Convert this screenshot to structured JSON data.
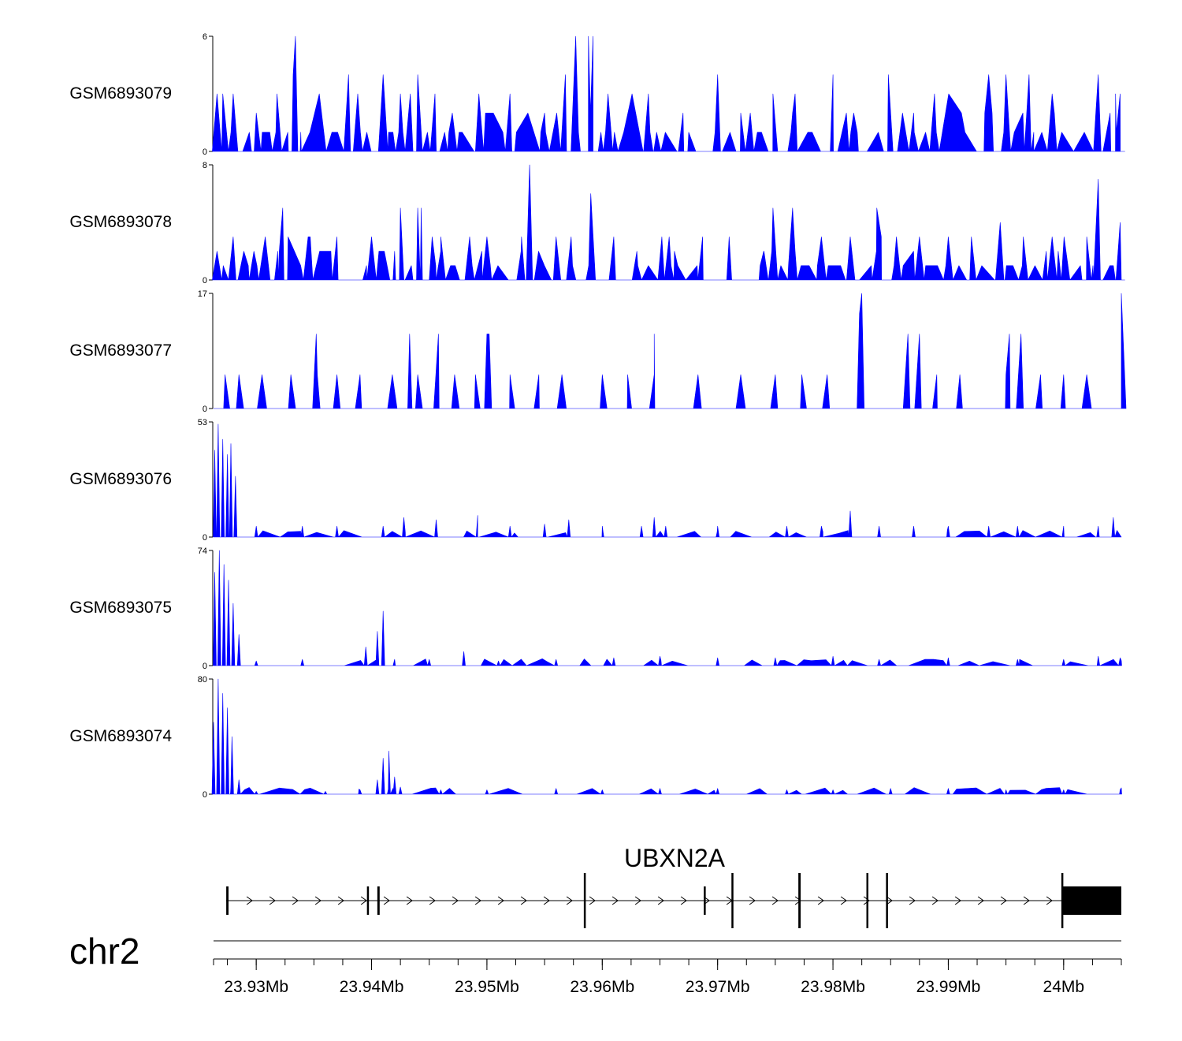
{
  "chart_data": {
    "type": "area",
    "chromosome": "chr2",
    "x_unit": "Mb",
    "xlim": [
      23.9263,
      24.005
    ],
    "x_ticks": [
      {
        "value": 23.93,
        "label": "23.93Mb"
      },
      {
        "value": 23.94,
        "label": "23.94Mb"
      },
      {
        "value": 23.95,
        "label": "23.95Mb"
      },
      {
        "value": 23.96,
        "label": "23.96Mb"
      },
      {
        "value": 23.97,
        "label": "23.97Mb"
      },
      {
        "value": 23.98,
        "label": "23.98Mb"
      },
      {
        "value": 23.99,
        "label": "23.99Mb"
      },
      {
        "value": 24.0,
        "label": "24Mb"
      }
    ],
    "tracks": [
      {
        "name": "GSM6893079",
        "ymax": 6,
        "ymin": 0,
        "color": "#0000ff",
        "peaks": [
          [
            23.9266,
            3
          ],
          [
            23.928,
            3
          ],
          [
            23.93,
            2
          ],
          [
            23.9318,
            3
          ],
          [
            23.9335,
            3
          ],
          [
            23.9334,
            6
          ],
          [
            23.9332,
            4
          ],
          [
            23.938,
            4
          ],
          [
            23.9388,
            3
          ],
          [
            23.941,
            4
          ],
          [
            23.9425,
            3
          ],
          [
            23.944,
            4
          ],
          [
            23.9455,
            3
          ],
          [
            23.947,
            2
          ],
          [
            23.9493,
            3
          ],
          [
            23.952,
            3
          ],
          [
            23.955,
            2
          ],
          [
            23.9568,
            4
          ],
          [
            23.9577,
            6
          ],
          [
            23.9588,
            6
          ],
          [
            23.9592,
            6
          ],
          [
            23.9605,
            3
          ],
          [
            23.964,
            3
          ],
          [
            23.967,
            2
          ],
          [
            23.97,
            4
          ],
          [
            23.972,
            2
          ],
          [
            23.9748,
            3
          ],
          [
            23.9765,
            2
          ],
          [
            23.98,
            4
          ],
          [
            23.9818,
            2
          ],
          [
            23.9848,
            4
          ],
          [
            23.987,
            2
          ],
          [
            23.9888,
            3
          ],
          [
            23.9935,
            4
          ],
          [
            23.995,
            4
          ],
          [
            23.997,
            4
          ],
          [
            23.999,
            3
          ],
          [
            24.003,
            4
          ],
          [
            24.0045,
            3
          ],
          [
            24.0049,
            3
          ]
        ]
      },
      {
        "name": "GSM6893078",
        "ymax": 8,
        "ymin": 0,
        "color": "#0000ff",
        "peaks": [
          [
            23.9266,
            2
          ],
          [
            23.928,
            3
          ],
          [
            23.9298,
            2
          ],
          [
            23.932,
            2
          ],
          [
            23.9323,
            5
          ],
          [
            23.9345,
            3
          ],
          [
            23.937,
            3
          ],
          [
            23.94,
            3
          ],
          [
            23.942,
            2
          ],
          [
            23.9425,
            5
          ],
          [
            23.944,
            5
          ],
          [
            23.9443,
            5
          ],
          [
            23.946,
            3
          ],
          [
            23.9485,
            3
          ],
          [
            23.95,
            3
          ],
          [
            23.953,
            3
          ],
          [
            23.9537,
            8
          ],
          [
            23.956,
            3
          ],
          [
            23.9573,
            3
          ],
          [
            23.959,
            6
          ],
          [
            23.961,
            3
          ],
          [
            23.963,
            2
          ],
          [
            23.9658,
            3
          ],
          [
            23.9687,
            3
          ],
          [
            23.971,
            3
          ],
          [
            23.974,
            2
          ],
          [
            23.9748,
            5
          ],
          [
            23.9765,
            5
          ],
          [
            23.979,
            3
          ],
          [
            23.9815,
            3
          ],
          [
            23.9838,
            5
          ],
          [
            23.9855,
            3
          ],
          [
            23.9875,
            3
          ],
          [
            23.99,
            3
          ],
          [
            23.992,
            3
          ],
          [
            23.9945,
            4
          ],
          [
            23.9965,
            3
          ],
          [
            23.999,
            3
          ],
          [
            24.002,
            3
          ],
          [
            24.003,
            7
          ],
          [
            24.0049,
            4
          ]
        ]
      },
      {
        "name": "GSM6893077",
        "ymax": 17,
        "ymin": 0,
        "color": "#0000ff",
        "peaks": [
          [
            23.9273,
            5
          ],
          [
            23.9285,
            5
          ],
          [
            23.9305,
            5
          ],
          [
            23.933,
            5
          ],
          [
            23.9353,
            5
          ],
          [
            23.9352,
            11
          ],
          [
            23.937,
            5
          ],
          [
            23.939,
            5
          ],
          [
            23.9418,
            5
          ],
          [
            23.944,
            5
          ],
          [
            23.9433,
            11
          ],
          [
            23.9458,
            11
          ],
          [
            23.9472,
            5
          ],
          [
            23.949,
            5
          ],
          [
            23.95,
            11
          ],
          [
            23.9502,
            11
          ],
          [
            23.952,
            5
          ],
          [
            23.9545,
            5
          ],
          [
            23.9565,
            5
          ],
          [
            23.96,
            5
          ],
          [
            23.9622,
            5
          ],
          [
            23.9645,
            5
          ],
          [
            23.9645,
            11
          ],
          [
            23.9683,
            5
          ],
          [
            23.972,
            5
          ],
          [
            23.975,
            5
          ],
          [
            23.9773,
            5
          ],
          [
            23.9795,
            5
          ],
          [
            23.9825,
            17
          ],
          [
            23.9823,
            14
          ],
          [
            23.9865,
            11
          ],
          [
            23.9875,
            11
          ],
          [
            23.989,
            5
          ],
          [
            23.991,
            5
          ],
          [
            23.995,
            5
          ],
          [
            23.9953,
            11
          ],
          [
            23.9963,
            11
          ],
          [
            23.998,
            5
          ],
          [
            24.0,
            5
          ],
          [
            24.002,
            5
          ],
          [
            24.005,
            17
          ]
        ]
      },
      {
        "name": "GSM6893076",
        "ymax": 53,
        "ymin": 0,
        "color": "#0000ff",
        "peaks": [
          [
            23.9264,
            40
          ],
          [
            23.9267,
            52
          ],
          [
            23.9271,
            45
          ],
          [
            23.9275,
            38
          ],
          [
            23.9278,
            43
          ],
          [
            23.9282,
            28
          ],
          [
            23.93,
            5
          ],
          [
            23.934,
            5
          ],
          [
            23.937,
            5
          ],
          [
            23.941,
            5
          ],
          [
            23.9428,
            9
          ],
          [
            23.9456,
            8
          ],
          [
            23.9492,
            10
          ],
          [
            23.952,
            5
          ],
          [
            23.955,
            6
          ],
          [
            23.9571,
            8
          ],
          [
            23.96,
            5
          ],
          [
            23.9634,
            5
          ],
          [
            23.9655,
            5
          ],
          [
            23.9645,
            9
          ],
          [
            23.97,
            5
          ],
          [
            23.976,
            5
          ],
          [
            23.979,
            5
          ],
          [
            23.9815,
            12
          ],
          [
            23.984,
            5
          ],
          [
            23.987,
            5
          ],
          [
            23.99,
            5
          ],
          [
            23.9935,
            5
          ],
          [
            23.996,
            5
          ],
          [
            24.0,
            5
          ],
          [
            24.003,
            5
          ],
          [
            24.0043,
            9
          ]
        ]
      },
      {
        "name": "GSM6893075",
        "ymax": 74,
        "ymin": 0,
        "color": "#0000ff",
        "peaks": [
          [
            23.9264,
            60
          ],
          [
            23.9268,
            74
          ],
          [
            23.9272,
            65
          ],
          [
            23.9276,
            55
          ],
          [
            23.928,
            40
          ],
          [
            23.9285,
            20
          ],
          [
            23.93,
            3
          ],
          [
            23.934,
            4
          ],
          [
            23.9395,
            12
          ],
          [
            23.9405,
            22
          ],
          [
            23.941,
            35
          ],
          [
            23.942,
            4
          ],
          [
            23.945,
            4
          ],
          [
            23.948,
            9
          ],
          [
            23.951,
            3
          ],
          [
            23.956,
            4
          ],
          [
            23.961,
            5
          ],
          [
            23.965,
            6
          ],
          [
            23.97,
            5
          ],
          [
            23.975,
            5
          ],
          [
            23.98,
            6
          ],
          [
            23.984,
            4
          ],
          [
            23.99,
            5
          ],
          [
            23.996,
            4
          ],
          [
            24.0,
            4
          ],
          [
            24.003,
            6
          ],
          [
            24.0049,
            5
          ]
        ]
      },
      {
        "name": "GSM6893074",
        "ymax": 80,
        "ymin": 0,
        "color": "#0000ff",
        "peaks": [
          [
            23.9263,
            50
          ],
          [
            23.9267,
            80
          ],
          [
            23.9271,
            70
          ],
          [
            23.9275,
            60
          ],
          [
            23.9279,
            40
          ],
          [
            23.9285,
            10
          ],
          [
            23.93,
            2
          ],
          [
            23.936,
            2
          ],
          [
            23.939,
            3
          ],
          [
            23.9405,
            10
          ],
          [
            23.941,
            25
          ],
          [
            23.9415,
            30
          ],
          [
            23.942,
            12
          ],
          [
            23.9425,
            5
          ],
          [
            23.946,
            3
          ],
          [
            23.95,
            3
          ],
          [
            23.956,
            4
          ],
          [
            23.96,
            3
          ],
          [
            23.965,
            4
          ],
          [
            23.97,
            4
          ],
          [
            23.976,
            3
          ],
          [
            23.98,
            3
          ],
          [
            23.985,
            4
          ],
          [
            23.99,
            4
          ],
          [
            23.995,
            3
          ],
          [
            24.0,
            3
          ],
          [
            24.0049,
            3
          ]
        ]
      }
    ],
    "gene": {
      "name": "UBXN2A",
      "strand": "+",
      "start": 23.9274,
      "end": 24.005,
      "exons": [
        {
          "start": 23.9274,
          "end": 23.9276,
          "type": "cds"
        },
        {
          "start": 23.9396,
          "end": 23.9397,
          "type": "cds"
        },
        {
          "start": 23.9405,
          "end": 23.9407,
          "type": "cds"
        },
        {
          "start": 23.9584,
          "end": 23.9585,
          "type": "cds"
        },
        {
          "start": 23.9688,
          "end": 23.9689,
          "type": "cds"
        },
        {
          "start": 23.9712,
          "end": 23.9713,
          "type": "cds"
        },
        {
          "start": 23.977,
          "end": 23.9772,
          "type": "cds"
        },
        {
          "start": 23.9829,
          "end": 23.983,
          "type": "cds"
        },
        {
          "start": 23.9846,
          "end": 23.9847,
          "type": "cds"
        },
        {
          "start": 23.9998,
          "end": 23.9999,
          "type": "cds"
        },
        {
          "start": 23.9999,
          "end": 24.005,
          "type": "utr"
        }
      ]
    }
  }
}
